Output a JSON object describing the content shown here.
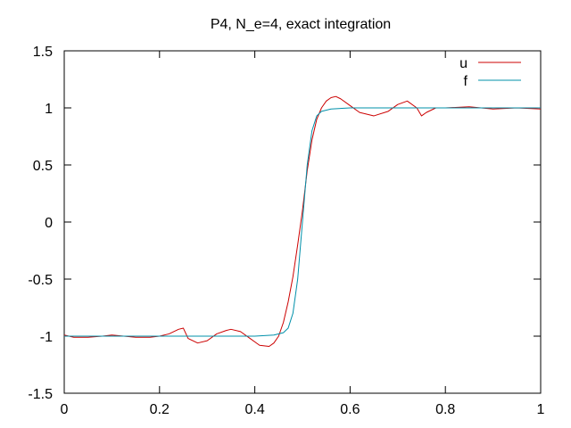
{
  "chart_data": {
    "type": "line",
    "title": "P4, N_e=4, exact integration",
    "xlabel": "",
    "ylabel": "",
    "xlim": [
      0,
      1
    ],
    "ylim": [
      -1.5,
      1.5
    ],
    "xticks": [
      0,
      0.2,
      0.4,
      0.6,
      0.8,
      1
    ],
    "xtick_labels": [
      "0",
      "0.2",
      "0.4",
      "0.6",
      "0.8",
      "1"
    ],
    "yticks": [
      -1.5,
      -1,
      -0.5,
      0,
      0.5,
      1,
      1.5
    ],
    "ytick_labels": [
      "-1.5",
      "-1",
      "-0.5",
      "0",
      "0.5",
      "1",
      "1.5"
    ],
    "grid": false,
    "legend_position": "top-right",
    "series": [
      {
        "name": "u",
        "color": "#cc0000",
        "x": [
          0,
          0.02,
          0.05,
          0.08,
          0.1,
          0.125,
          0.15,
          0.18,
          0.2,
          0.22,
          0.24,
          0.25,
          0.26,
          0.28,
          0.3,
          0.32,
          0.34,
          0.35,
          0.37,
          0.39,
          0.41,
          0.43,
          0.44,
          0.45,
          0.46,
          0.47,
          0.48,
          0.49,
          0.5,
          0.51,
          0.52,
          0.53,
          0.54,
          0.55,
          0.56,
          0.57,
          0.58,
          0.6,
          0.62,
          0.65,
          0.68,
          0.7,
          0.72,
          0.74,
          0.75,
          0.76,
          0.78,
          0.8,
          0.85,
          0.9,
          0.95,
          1.0
        ],
        "y": [
          -0.99,
          -1.01,
          -1.01,
          -1.0,
          -0.99,
          -1.0,
          -1.01,
          -1.01,
          -1.0,
          -0.98,
          -0.94,
          -0.93,
          -1.02,
          -1.06,
          -1.04,
          -0.98,
          -0.95,
          -0.94,
          -0.96,
          -1.02,
          -1.08,
          -1.09,
          -1.06,
          -1.0,
          -0.88,
          -0.7,
          -0.48,
          -0.2,
          0.1,
          0.45,
          0.72,
          0.9,
          1.0,
          1.06,
          1.09,
          1.1,
          1.08,
          1.02,
          0.96,
          0.93,
          0.97,
          1.03,
          1.06,
          1.0,
          0.93,
          0.96,
          1.0,
          1.0,
          1.01,
          0.99,
          1.0,
          0.99
        ]
      },
      {
        "name": "f",
        "color": "#0090aa",
        "x": [
          0,
          0.1,
          0.2,
          0.3,
          0.4,
          0.44,
          0.46,
          0.47,
          0.48,
          0.49,
          0.5,
          0.51,
          0.52,
          0.53,
          0.54,
          0.56,
          0.6,
          0.7,
          0.8,
          0.9,
          1.0
        ],
        "y": [
          -1.0,
          -1.0,
          -1.0,
          -1.0,
          -1.0,
          -0.99,
          -0.97,
          -0.93,
          -0.8,
          -0.5,
          0.0,
          0.5,
          0.8,
          0.93,
          0.97,
          0.99,
          1.0,
          1.0,
          1.0,
          1.0,
          1.0
        ]
      }
    ]
  }
}
